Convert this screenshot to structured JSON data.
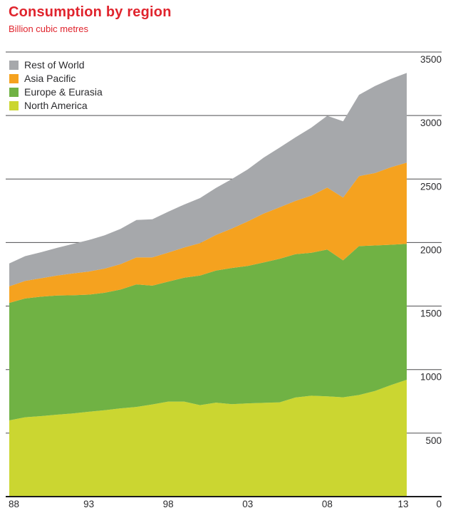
{
  "header": {
    "title": "Consumption by region",
    "subtitle": "Billion cubic metres",
    "title_color": "#e0242d"
  },
  "legend": [
    {
      "label": "Rest of World",
      "color": "#a6a8ab"
    },
    {
      "label": "Asia Pacific",
      "color": "#f5a21f"
    },
    {
      "label": "Europe & Eurasia",
      "color": "#70b244"
    },
    {
      "label": "North America",
      "color": "#cbd631"
    }
  ],
  "chart_data": {
    "type": "area",
    "stacked": true,
    "title": "Consumption by region",
    "ylabel": "Billion cubic metres",
    "xlabel": "",
    "grid": true,
    "legend_position": "top-left",
    "ylim": [
      0,
      3500
    ],
    "y_ticks": [
      0,
      500,
      1000,
      1500,
      2000,
      2500,
      3000,
      3500
    ],
    "x": [
      1988,
      1989,
      1990,
      1991,
      1992,
      1993,
      1994,
      1995,
      1996,
      1997,
      1998,
      1999,
      2000,
      2001,
      2002,
      2003,
      2004,
      2005,
      2006,
      2007,
      2008,
      2009,
      2010,
      2011,
      2012,
      2013
    ],
    "x_ticks": [
      {
        "label": "88",
        "year": 1988
      },
      {
        "label": "93",
        "year": 1993
      },
      {
        "label": "98",
        "year": 1998
      },
      {
        "label": "03",
        "year": 2003
      },
      {
        "label": "08",
        "year": 2008
      },
      {
        "label": "13",
        "year": 2013
      }
    ],
    "y_zero_label": "0",
    "series": [
      {
        "name": "North America",
        "color": "#cbd631",
        "values": [
          600,
          625,
          634,
          645,
          655,
          668,
          680,
          695,
          706,
          726,
          748,
          748,
          720,
          740,
          728,
          734,
          738,
          742,
          780,
          794,
          790,
          782,
          800,
          832,
          878,
          920
        ]
      },
      {
        "name": "Europe & Eurasia",
        "color": "#70b244",
        "values": [
          925,
          935,
          940,
          938,
          930,
          922,
          925,
          935,
          965,
          935,
          945,
          975,
          1020,
          1040,
          1072,
          1082,
          1105,
          1130,
          1128,
          1126,
          1155,
          1078,
          1172,
          1145,
          1105,
          1070
        ]
      },
      {
        "name": "Asia Pacific",
        "color": "#f5a21f",
        "values": [
          130,
          138,
          145,
          157,
          172,
          182,
          190,
          200,
          212,
          222,
          228,
          238,
          255,
          280,
          310,
          350,
          385,
          405,
          420,
          450,
          488,
          494,
          551,
          570,
          610,
          639
        ]
      },
      {
        "name": "Rest of World",
        "color": "#a6a8ab",
        "values": [
          180,
          195,
          205,
          218,
          232,
          248,
          262,
          278,
          295,
          300,
          322,
          338,
          355,
          370,
          390,
          410,
          440,
          470,
          500,
          535,
          565,
          600,
          640,
          685,
          695,
          706
        ]
      }
    ],
    "style": {
      "gridline_color": "#4d4d4f",
      "axis_line_color": "#1a1a1a",
      "tick_label_color": "#2a2a2d"
    }
  }
}
